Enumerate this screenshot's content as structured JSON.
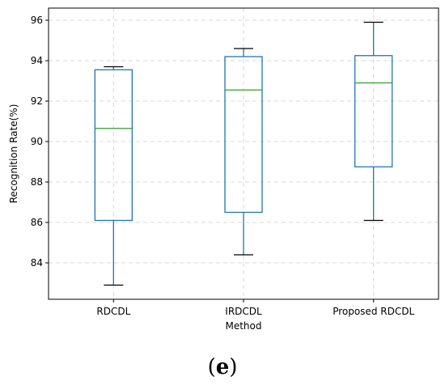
{
  "chart_data": {
    "type": "box",
    "xlabel": "Method",
    "ylabel": "Recognition Rate(%)",
    "ylim": [
      82.2,
      96.6
    ],
    "yticks": [
      84,
      86,
      88,
      90,
      92,
      94,
      96
    ],
    "grid": true,
    "categories": [
      "RDCDL",
      "IRDCDL",
      "Proposed RDCDL"
    ],
    "boxes": [
      {
        "category": "RDCDL",
        "whisker_low": 82.9,
        "q1": 86.1,
        "median": 90.65,
        "q3": 93.55,
        "whisker_high": 93.7
      },
      {
        "category": "IRDCDL",
        "whisker_low": 84.4,
        "q1": 86.5,
        "median": 92.55,
        "q3": 94.2,
        "whisker_high": 94.6
      },
      {
        "category": "Proposed RDCDL",
        "whisker_low": 86.1,
        "q1": 88.75,
        "median": 92.9,
        "q3": 94.25,
        "whisker_high": 95.9
      }
    ],
    "colors": {
      "box": "#1f77b4",
      "median": "#2ca02c",
      "whisker_cap": "#000000",
      "grid": "#d9d9d9"
    }
  },
  "caption": {
    "open": "(",
    "letter": "e",
    "close": ")"
  }
}
